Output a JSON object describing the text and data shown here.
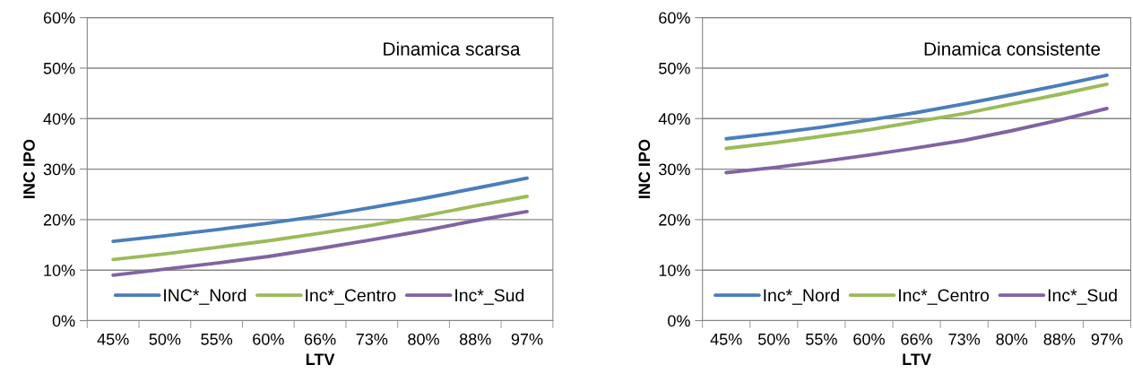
{
  "chart_data": [
    {
      "type": "line",
      "xlabel": "LTV",
      "ylabel": "INC IPO",
      "annotations": [
        "Dinamica scarsa"
      ],
      "categories": [
        "45%",
        "50%",
        "55%",
        "60%",
        "66%",
        "73%",
        "80%",
        "88%",
        "97%"
      ],
      "series": [
        {
          "name": "INC*_Nord",
          "color": "#4a7ebb",
          "values": [
            15.7,
            16.8,
            18.0,
            19.3,
            20.7,
            22.4,
            24.2,
            26.2,
            28.2
          ]
        },
        {
          "name": "Inc*_Centro",
          "color": "#9bbb59",
          "values": [
            12.1,
            13.2,
            14.5,
            15.8,
            17.3,
            18.9,
            20.7,
            22.7,
            24.6
          ]
        },
        {
          "name": "Inc*_Sud",
          "color": "#8064a2",
          "values": [
            9.0,
            10.2,
            11.4,
            12.7,
            14.3,
            16.0,
            17.8,
            19.8,
            21.6
          ]
        }
      ],
      "ylim": [
        0,
        60
      ],
      "yticks": [
        {
          "value": 0,
          "label": "0%"
        },
        {
          "value": 10,
          "label": "10%"
        },
        {
          "value": 20,
          "label": "20%"
        },
        {
          "value": 30,
          "label": "30%"
        },
        {
          "value": 40,
          "label": "40%"
        },
        {
          "value": 50,
          "label": "50%"
        },
        {
          "value": 60,
          "label": "60%"
        }
      ],
      "grid": "y",
      "legend": "bottom",
      "marker": "none",
      "line_style": "solid"
    },
    {
      "type": "line",
      "xlabel": "LTV",
      "ylabel": "INC IPO",
      "annotations": [
        "Dinamica consistente"
      ],
      "categories": [
        "45%",
        "50%",
        "55%",
        "60%",
        "66%",
        "73%",
        "80%",
        "88%",
        "97%"
      ],
      "series": [
        {
          "name": "Inc*_Nord",
          "color": "#4a7ebb",
          "values": [
            36.0,
            37.1,
            38.3,
            39.7,
            41.2,
            42.9,
            44.7,
            46.6,
            48.6
          ]
        },
        {
          "name": "Inc*_Centro",
          "color": "#9bbb59",
          "values": [
            34.1,
            35.2,
            36.5,
            37.8,
            39.4,
            41.0,
            42.9,
            44.8,
            46.8
          ]
        },
        {
          "name": "Inc*_Sud",
          "color": "#8064a2",
          "values": [
            29.3,
            30.3,
            31.5,
            32.8,
            34.2,
            35.7,
            37.6,
            39.7,
            42.0
          ]
        }
      ],
      "ylim": [
        0,
        60
      ],
      "yticks": [
        {
          "value": 0,
          "label": "0%"
        },
        {
          "value": 10,
          "label": "10%"
        },
        {
          "value": 20,
          "label": "20%"
        },
        {
          "value": 30,
          "label": "30%"
        },
        {
          "value": 40,
          "label": "40%"
        },
        {
          "value": 50,
          "label": "50%"
        },
        {
          "value": 60,
          "label": "60%"
        }
      ],
      "grid": "y",
      "legend": "bottom",
      "marker": "none",
      "line_style": "solid"
    }
  ]
}
